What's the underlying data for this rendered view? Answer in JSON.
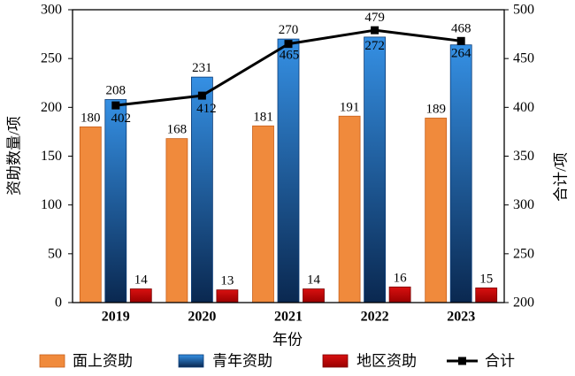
{
  "chart_data": {
    "type": "bar",
    "categories": [
      "2019",
      "2020",
      "2021",
      "2022",
      "2023"
    ],
    "xlabel": "年份",
    "ylabel": "资助数量/项",
    "y2label": "合计/项",
    "ylim": [
      0,
      300
    ],
    "yticks": [
      "0",
      "50",
      "100",
      "150",
      "200",
      "250",
      "300"
    ],
    "y2lim": [
      200,
      500
    ],
    "y2ticks": [
      "200",
      "250",
      "300",
      "350",
      "400",
      "450",
      "500"
    ],
    "grid": false,
    "legend": "bottom",
    "data_labels": true,
    "series": [
      {
        "name": "面上资助",
        "type": "bar",
        "color": "#F08A3C",
        "edge": "#C8601C",
        "values": [
          180,
          168,
          181,
          191,
          189
        ]
      },
      {
        "name": "青年资助",
        "type": "bar",
        "color": "#1F5FA8",
        "gradient": [
          "#3590E4",
          "#0A2850"
        ],
        "edge": "#0B3C78",
        "values": [
          208,
          231,
          270,
          272,
          264
        ]
      },
      {
        "name": "地区资助",
        "type": "bar",
        "color": "#C00000",
        "gradient": [
          "#D81010",
          "#9A0000"
        ],
        "edge": "#7A0000",
        "values": [
          14,
          13,
          14,
          16,
          15
        ]
      },
      {
        "name": "合计",
        "type": "line",
        "color": "#000000",
        "values": [
          402,
          412,
          465,
          479,
          468
        ]
      }
    ]
  }
}
